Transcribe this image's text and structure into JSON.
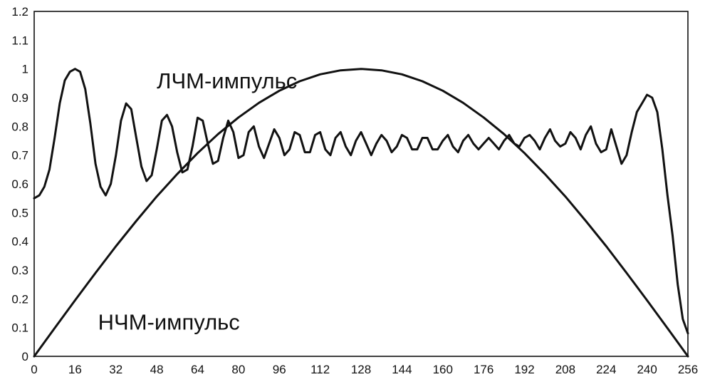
{
  "chart_data": {
    "type": "line",
    "title": "",
    "xlabel": "",
    "ylabel": "",
    "xlim": [
      0,
      256
    ],
    "ylim": [
      0,
      1.2
    ],
    "grid": false,
    "x_ticks": [
      "0",
      "16",
      "32",
      "48",
      "64",
      "80",
      "96",
      "112",
      "128",
      "144",
      "160",
      "176",
      "192",
      "208",
      "224",
      "240",
      "256"
    ],
    "y_ticks": [
      "0",
      "0.1",
      "0.2",
      "0.3",
      "0.4",
      "0.5",
      "0.6",
      "0.7",
      "0.8",
      "0.9",
      "1",
      "1.1",
      "1.2"
    ],
    "annotations": [
      {
        "text": "ЛЧМ-импульс",
        "x": 48,
        "y": 0.96
      },
      {
        "text": "НЧМ-импульс",
        "x": 25,
        "y": 0.12
      }
    ],
    "series": [
      {
        "name": "ЛЧМ-импульс",
        "x": [
          0,
          2,
          4,
          6,
          8,
          10,
          12,
          14,
          16,
          18,
          20,
          22,
          24,
          26,
          28,
          30,
          32,
          34,
          36,
          38,
          40,
          42,
          44,
          46,
          48,
          50,
          52,
          54,
          56,
          58,
          60,
          62,
          64,
          66,
          68,
          70,
          72,
          74,
          76,
          78,
          80,
          82,
          84,
          86,
          88,
          90,
          92,
          94,
          96,
          98,
          100,
          102,
          104,
          106,
          108,
          110,
          112,
          114,
          116,
          118,
          120,
          122,
          124,
          126,
          128,
          130,
          132,
          134,
          136,
          138,
          140,
          142,
          144,
          146,
          148,
          150,
          152,
          154,
          156,
          158,
          160,
          162,
          164,
          166,
          168,
          170,
          172,
          174,
          176,
          178,
          180,
          182,
          184,
          186,
          188,
          190,
          192,
          194,
          196,
          198,
          200,
          202,
          204,
          206,
          208,
          210,
          212,
          214,
          216,
          218,
          220,
          222,
          224,
          226,
          228,
          230,
          232,
          234,
          236,
          238,
          240,
          242,
          244,
          246,
          248,
          250,
          252,
          254,
          256
        ],
        "values": [
          0.55,
          0.56,
          0.59,
          0.65,
          0.76,
          0.88,
          0.96,
          0.99,
          1.0,
          0.99,
          0.93,
          0.81,
          0.67,
          0.59,
          0.56,
          0.6,
          0.7,
          0.82,
          0.88,
          0.86,
          0.76,
          0.66,
          0.61,
          0.63,
          0.72,
          0.82,
          0.84,
          0.8,
          0.71,
          0.64,
          0.65,
          0.73,
          0.83,
          0.82,
          0.74,
          0.67,
          0.68,
          0.76,
          0.82,
          0.78,
          0.69,
          0.7,
          0.78,
          0.8,
          0.73,
          0.69,
          0.74,
          0.79,
          0.76,
          0.7,
          0.72,
          0.78,
          0.77,
          0.71,
          0.71,
          0.77,
          0.78,
          0.72,
          0.7,
          0.76,
          0.78,
          0.73,
          0.7,
          0.75,
          0.78,
          0.74,
          0.7,
          0.74,
          0.77,
          0.75,
          0.71,
          0.73,
          0.77,
          0.76,
          0.72,
          0.72,
          0.76,
          0.76,
          0.72,
          0.72,
          0.75,
          0.77,
          0.73,
          0.71,
          0.75,
          0.77,
          0.74,
          0.72,
          0.74,
          0.76,
          0.74,
          0.72,
          0.75,
          0.77,
          0.74,
          0.73,
          0.76,
          0.77,
          0.75,
          0.72,
          0.76,
          0.79,
          0.75,
          0.73,
          0.74,
          0.78,
          0.76,
          0.72,
          0.77,
          0.8,
          0.74,
          0.71,
          0.72,
          0.79,
          0.73,
          0.67,
          0.7,
          0.78,
          0.85,
          0.88,
          0.91,
          0.9,
          0.85,
          0.72,
          0.56,
          0.42,
          0.25,
          0.13,
          0.08
        ]
      },
      {
        "name": "НЧМ-импульс",
        "x": [
          0,
          8,
          16,
          24,
          32,
          40,
          48,
          56,
          64,
          72,
          80,
          88,
          96,
          104,
          112,
          120,
          128,
          136,
          144,
          152,
          160,
          168,
          176,
          184,
          192,
          200,
          208,
          216,
          224,
          232,
          240,
          248,
          256
        ],
        "values": [
          0.0,
          0.098,
          0.195,
          0.29,
          0.383,
          0.471,
          0.556,
          0.634,
          0.707,
          0.773,
          0.831,
          0.882,
          0.924,
          0.957,
          0.981,
          0.995,
          1.0,
          0.995,
          0.981,
          0.957,
          0.924,
          0.882,
          0.831,
          0.773,
          0.707,
          0.634,
          0.556,
          0.471,
          0.383,
          0.29,
          0.195,
          0.098,
          0.0
        ]
      }
    ]
  }
}
